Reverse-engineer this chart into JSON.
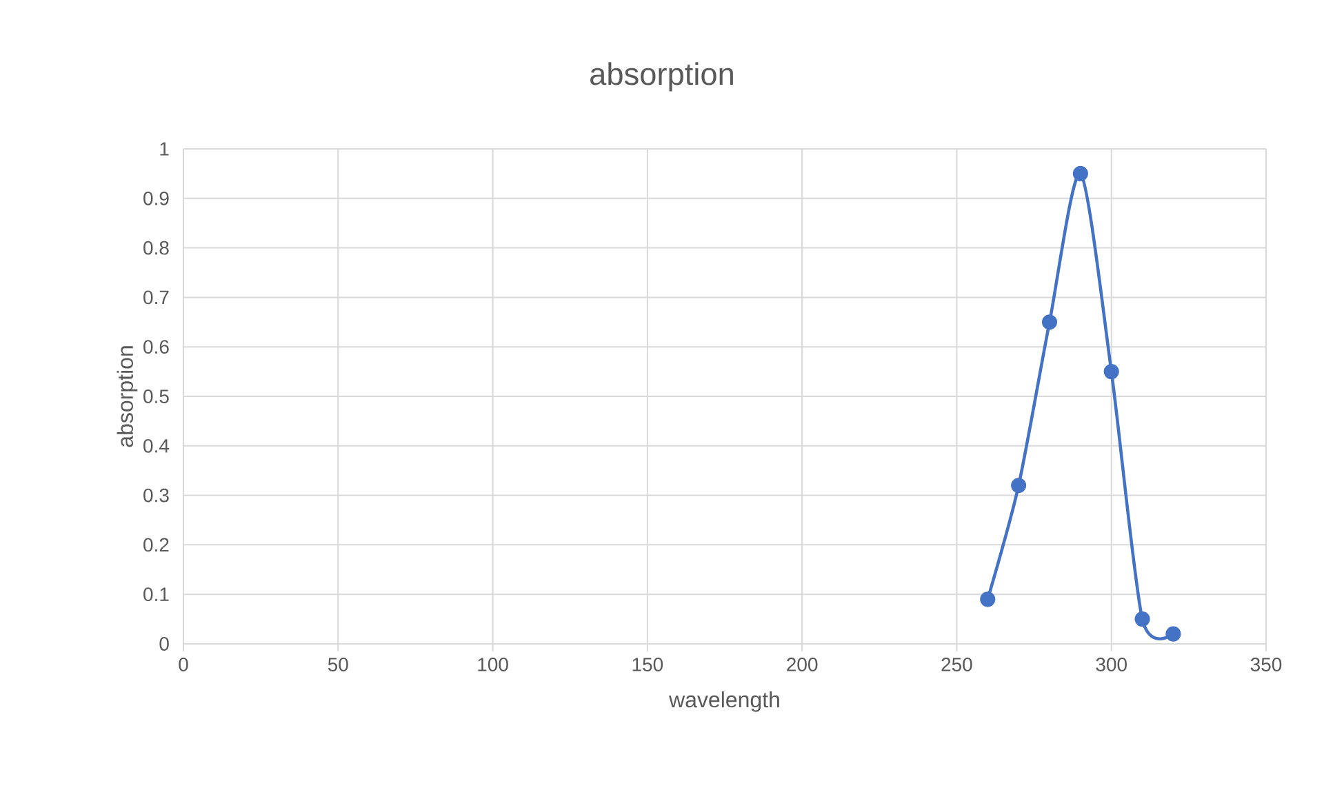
{
  "chart_data": {
    "type": "line",
    "title": "absorption",
    "xlabel": "wavelength",
    "ylabel": "absorption",
    "x": [
      260,
      270,
      280,
      290,
      300,
      310,
      320
    ],
    "values": [
      0.09,
      0.32,
      0.65,
      0.95,
      0.55,
      0.05,
      0.02
    ],
    "color": "#4472c4",
    "marker": "circle",
    "grid": true,
    "xlim": [
      0,
      350
    ],
    "xticks": [
      0,
      50,
      100,
      150,
      200,
      250,
      300,
      350
    ],
    "ylim": [
      0,
      1
    ],
    "yticks": [
      0,
      0.1,
      0.2,
      0.3,
      0.4,
      0.5,
      0.6,
      0.7,
      0.8,
      0.9,
      1
    ]
  }
}
